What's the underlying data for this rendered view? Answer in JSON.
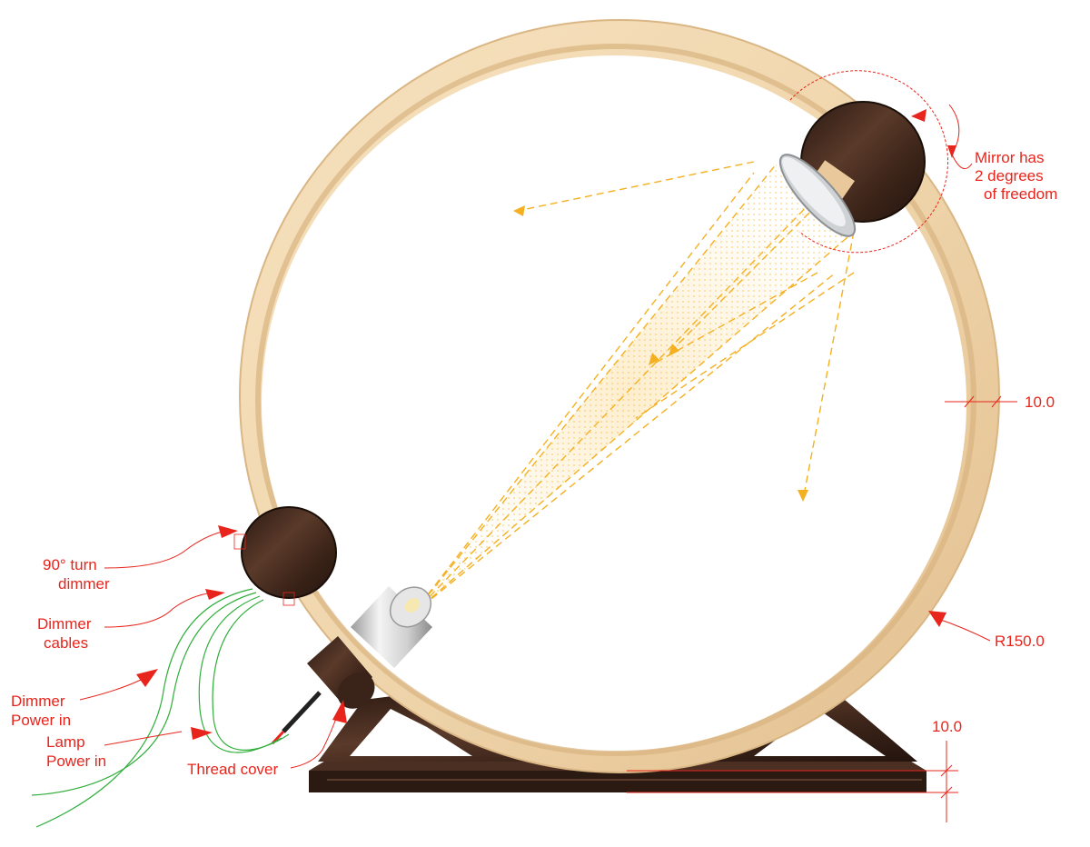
{
  "colors": {
    "annotation": "#e8251c",
    "wood_light": "#f0d8b0",
    "wood_edge": "#dcb886",
    "wood_dark": "#3b241a",
    "beam": "#f4b020",
    "cable": "#2fae3a",
    "metal": "#c8c8c8"
  },
  "labels": {
    "mirror_line1": "Mirror has",
    "mirror_line2": "2 degrees",
    "mirror_line3": "of freedom",
    "dim_thickness": "10.0",
    "radius": "R150.0",
    "base_height": "10.0",
    "dimmer_line1": "90° turn",
    "dimmer_line2": "dimmer",
    "cables_line1": "Dimmer",
    "cables_line2": "cables",
    "dpower_line1": "Dimmer",
    "dpower_line2": "Power in",
    "lpower_line1": "Lamp",
    "lpower_line2": "Power in",
    "thread_cover": "Thread cover"
  },
  "icons": {
    "mirror": "mirror-disc-icon",
    "dimmer": "dimmer-knob-icon",
    "lamp": "lamp-head-icon"
  }
}
